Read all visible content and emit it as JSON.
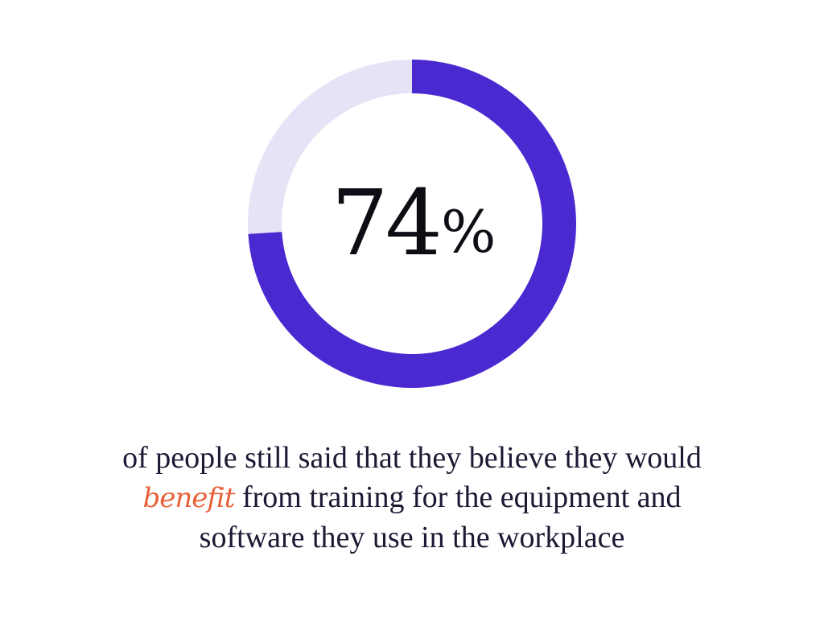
{
  "chart_data": {
    "type": "pie",
    "value_label": "74",
    "value_unit": "%",
    "slices": [
      {
        "value": 74,
        "color": "#4a29d1"
      },
      {
        "value": 26,
        "color": "#e6e3f7"
      }
    ]
  },
  "caption": {
    "before": "of people still said that they believe they would",
    "emphasis": "benefit",
    "after_line2": " from training for the equipment and",
    "line3": "software they use in the workplace",
    "emphasis_color": "#e8613a"
  }
}
